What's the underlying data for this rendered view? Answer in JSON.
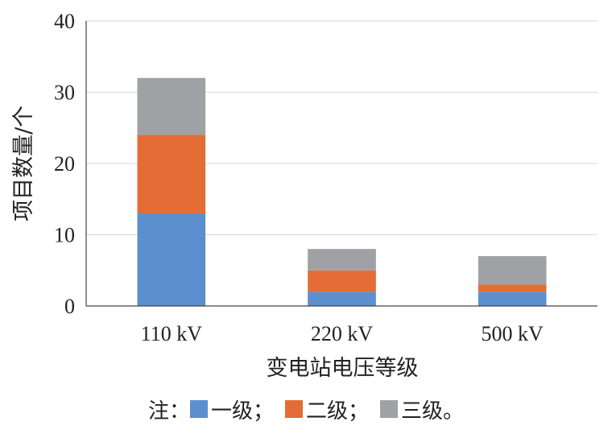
{
  "chart_data": {
    "type": "bar",
    "stacked": true,
    "categories": [
      "110 kV",
      "220 kV",
      "500 kV"
    ],
    "series": [
      {
        "name": "一级",
        "values": [
          13,
          2,
          2
        ],
        "color": "#5b8fce"
      },
      {
        "name": "二级",
        "values": [
          11,
          3,
          1
        ],
        "color": "#e36d34"
      },
      {
        "name": "三级",
        "values": [
          8,
          3,
          4
        ],
        "color": "#a0a1a5"
      }
    ],
    "ylim": [
      0,
      40
    ],
    "yticks": [
      0,
      10,
      20,
      30,
      40
    ],
    "xlabel": "变电站电压等级",
    "ylabel": "项目数量/个",
    "grid": true,
    "legend": {
      "position": "bottom",
      "prefix": "注：",
      "separator": "；",
      "suffix": "。"
    }
  }
}
